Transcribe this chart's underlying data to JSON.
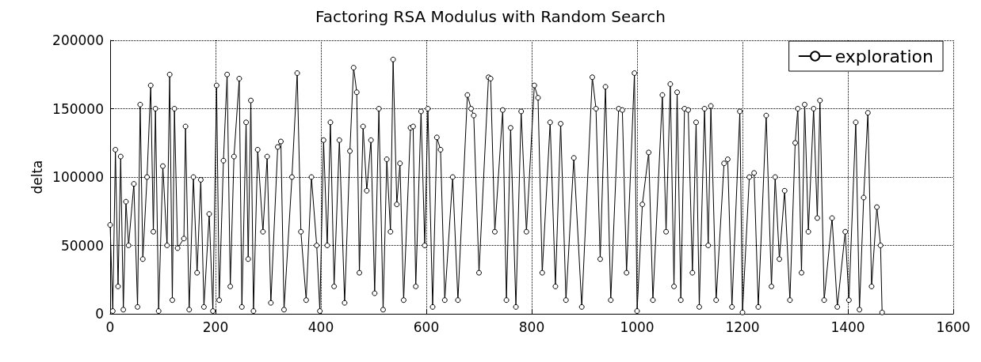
{
  "chart_data": {
    "type": "line",
    "title": "Factoring RSA Modulus with Random Search",
    "ylabel": "delta",
    "xlim": [
      0,
      1600
    ],
    "xticks": [
      0,
      200,
      400,
      600,
      800,
      1000,
      1200,
      1400,
      1600
    ],
    "ylim": [
      0,
      200000
    ],
    "yticks": [
      0,
      50000,
      100000,
      150000,
      200000
    ],
    "grid": true,
    "legend": "top right",
    "marker": "circle",
    "line_style": "solid",
    "series": [
      {
        "name": "exploration",
        "color": "#000000",
        "x": [
          0,
          5,
          10,
          15,
          20,
          25,
          30,
          35,
          45,
          52,
          57,
          62,
          70,
          77,
          82,
          86,
          92,
          100,
          108,
          113,
          118,
          122,
          128,
          140,
          143,
          150,
          158,
          165,
          172,
          178,
          188,
          195,
          202,
          207,
          215,
          222,
          228,
          235,
          245,
          250,
          258,
          262,
          267,
          272,
          280,
          290,
          298,
          305,
          318,
          324,
          330,
          345,
          355,
          362,
          372,
          382,
          392,
          398,
          405,
          412,
          418,
          425,
          435,
          445,
          455,
          462,
          468,
          473,
          480,
          487,
          495,
          502,
          510,
          518,
          525,
          532,
          537,
          544,
          550,
          557,
          570,
          575,
          580,
          590,
          597,
          603,
          612,
          620,
          627,
          635,
          650,
          660,
          678,
          685,
          690,
          700,
          718,
          722,
          730,
          745,
          752,
          760,
          770,
          780,
          790,
          805,
          812,
          820,
          835,
          845,
          855,
          865,
          880,
          895,
          915,
          922,
          930,
          940,
          950,
          965,
          972,
          980,
          995,
          1000,
          1010,
          1022,
          1030,
          1048,
          1055,
          1063,
          1070,
          1076,
          1083,
          1090,
          1097,
          1105,
          1112,
          1118,
          1128,
          1135,
          1140,
          1150,
          1165,
          1172,
          1180,
          1195,
          1200,
          1213,
          1222,
          1230,
          1245,
          1255,
          1262,
          1270,
          1280,
          1290,
          1300,
          1305,
          1312,
          1318,
          1325,
          1335,
          1342,
          1347,
          1355,
          1370,
          1380,
          1395,
          1402,
          1415,
          1422,
          1430,
          1438,
          1445,
          1455,
          1462,
          1465
        ],
        "values": [
          65000,
          2000,
          120000,
          20000,
          115000,
          3000,
          82000,
          50000,
          95000,
          5000,
          153000,
          40000,
          100000,
          167000,
          60000,
          150000,
          2000,
          108000,
          50000,
          175000,
          10000,
          150000,
          48000,
          55000,
          137000,
          3000,
          100000,
          30000,
          98000,
          5000,
          73000,
          2000,
          167000,
          10000,
          112000,
          175000,
          20000,
          115000,
          172000,
          5000,
          140000,
          40000,
          156000,
          2000,
          120000,
          60000,
          115000,
          8000,
          122000,
          126000,
          3000,
          100000,
          176000,
          60000,
          10000,
          100000,
          50000,
          2000,
          127000,
          50000,
          140000,
          20000,
          127000,
          8000,
          119000,
          180000,
          162000,
          30000,
          137000,
          90000,
          127000,
          15000,
          150000,
          3000,
          113000,
          60000,
          186000,
          80000,
          110000,
          10000,
          136000,
          137000,
          20000,
          148000,
          50000,
          150000,
          5000,
          129000,
          120000,
          10000,
          100000,
          10000,
          160000,
          150000,
          145000,
          30000,
          173000,
          172000,
          60000,
          149000,
          10000,
          136000,
          5000,
          148000,
          60000,
          167000,
          158000,
          30000,
          140000,
          20000,
          139000,
          10000,
          114000,
          5000,
          173000,
          150000,
          40000,
          166000,
          10000,
          150000,
          149000,
          30000,
          176000,
          2000,
          80000,
          118000,
          10000,
          160000,
          60000,
          168000,
          20000,
          162000,
          10000,
          150000,
          149000,
          30000,
          140000,
          5000,
          150000,
          50000,
          152000,
          10000,
          110000,
          113000,
          5000,
          148000,
          1000,
          100000,
          103000,
          5000,
          145000,
          20000,
          100000,
          40000,
          90000,
          10000,
          125000,
          150000,
          30000,
          153000,
          60000,
          150000,
          70000,
          156000,
          10000,
          70000,
          5000,
          60000,
          10000,
          140000,
          3000,
          85000,
          147000,
          20000,
          78000,
          50000,
          1000
        ]
      }
    ]
  }
}
